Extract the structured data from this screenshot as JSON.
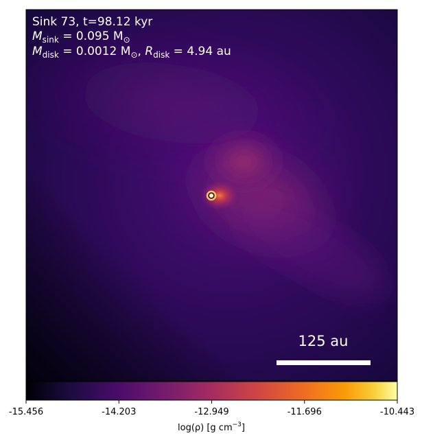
{
  "annotation": {
    "line1": "Sink 73, t=98.12 kyr",
    "line2_symbol": "M",
    "line2_sub": "sink",
    "line2_value": " = 0.095 M",
    "line2_sun": "⊙",
    "line3_symbol": "M",
    "line3_sub": "disk",
    "line3_value": " = 0.0012 M",
    "line3_sun": "⊙",
    "line3_sep": ", ",
    "line3_rsymbol": "R",
    "line3_rsub": "disk",
    "line3_rvalue": " = 4.94 au"
  },
  "scale_bar": {
    "label": "125 au",
    "length_au": 125
  },
  "colorbar": {
    "colormap": "inferno-like",
    "ticks": [
      "-15.456",
      "-14.203",
      "-12.949",
      "-11.696",
      "-10.443"
    ],
    "label_pre": "log(ρ) [g cm",
    "label_sup": "−3",
    "label_post": "]"
  },
  "colors": {
    "background_dark": "#0b0418",
    "purple": "#3b0f6f",
    "magenta": "#8c2981",
    "sink_ring": "#f5c36a",
    "sink_core": "#3a1a10"
  }
}
